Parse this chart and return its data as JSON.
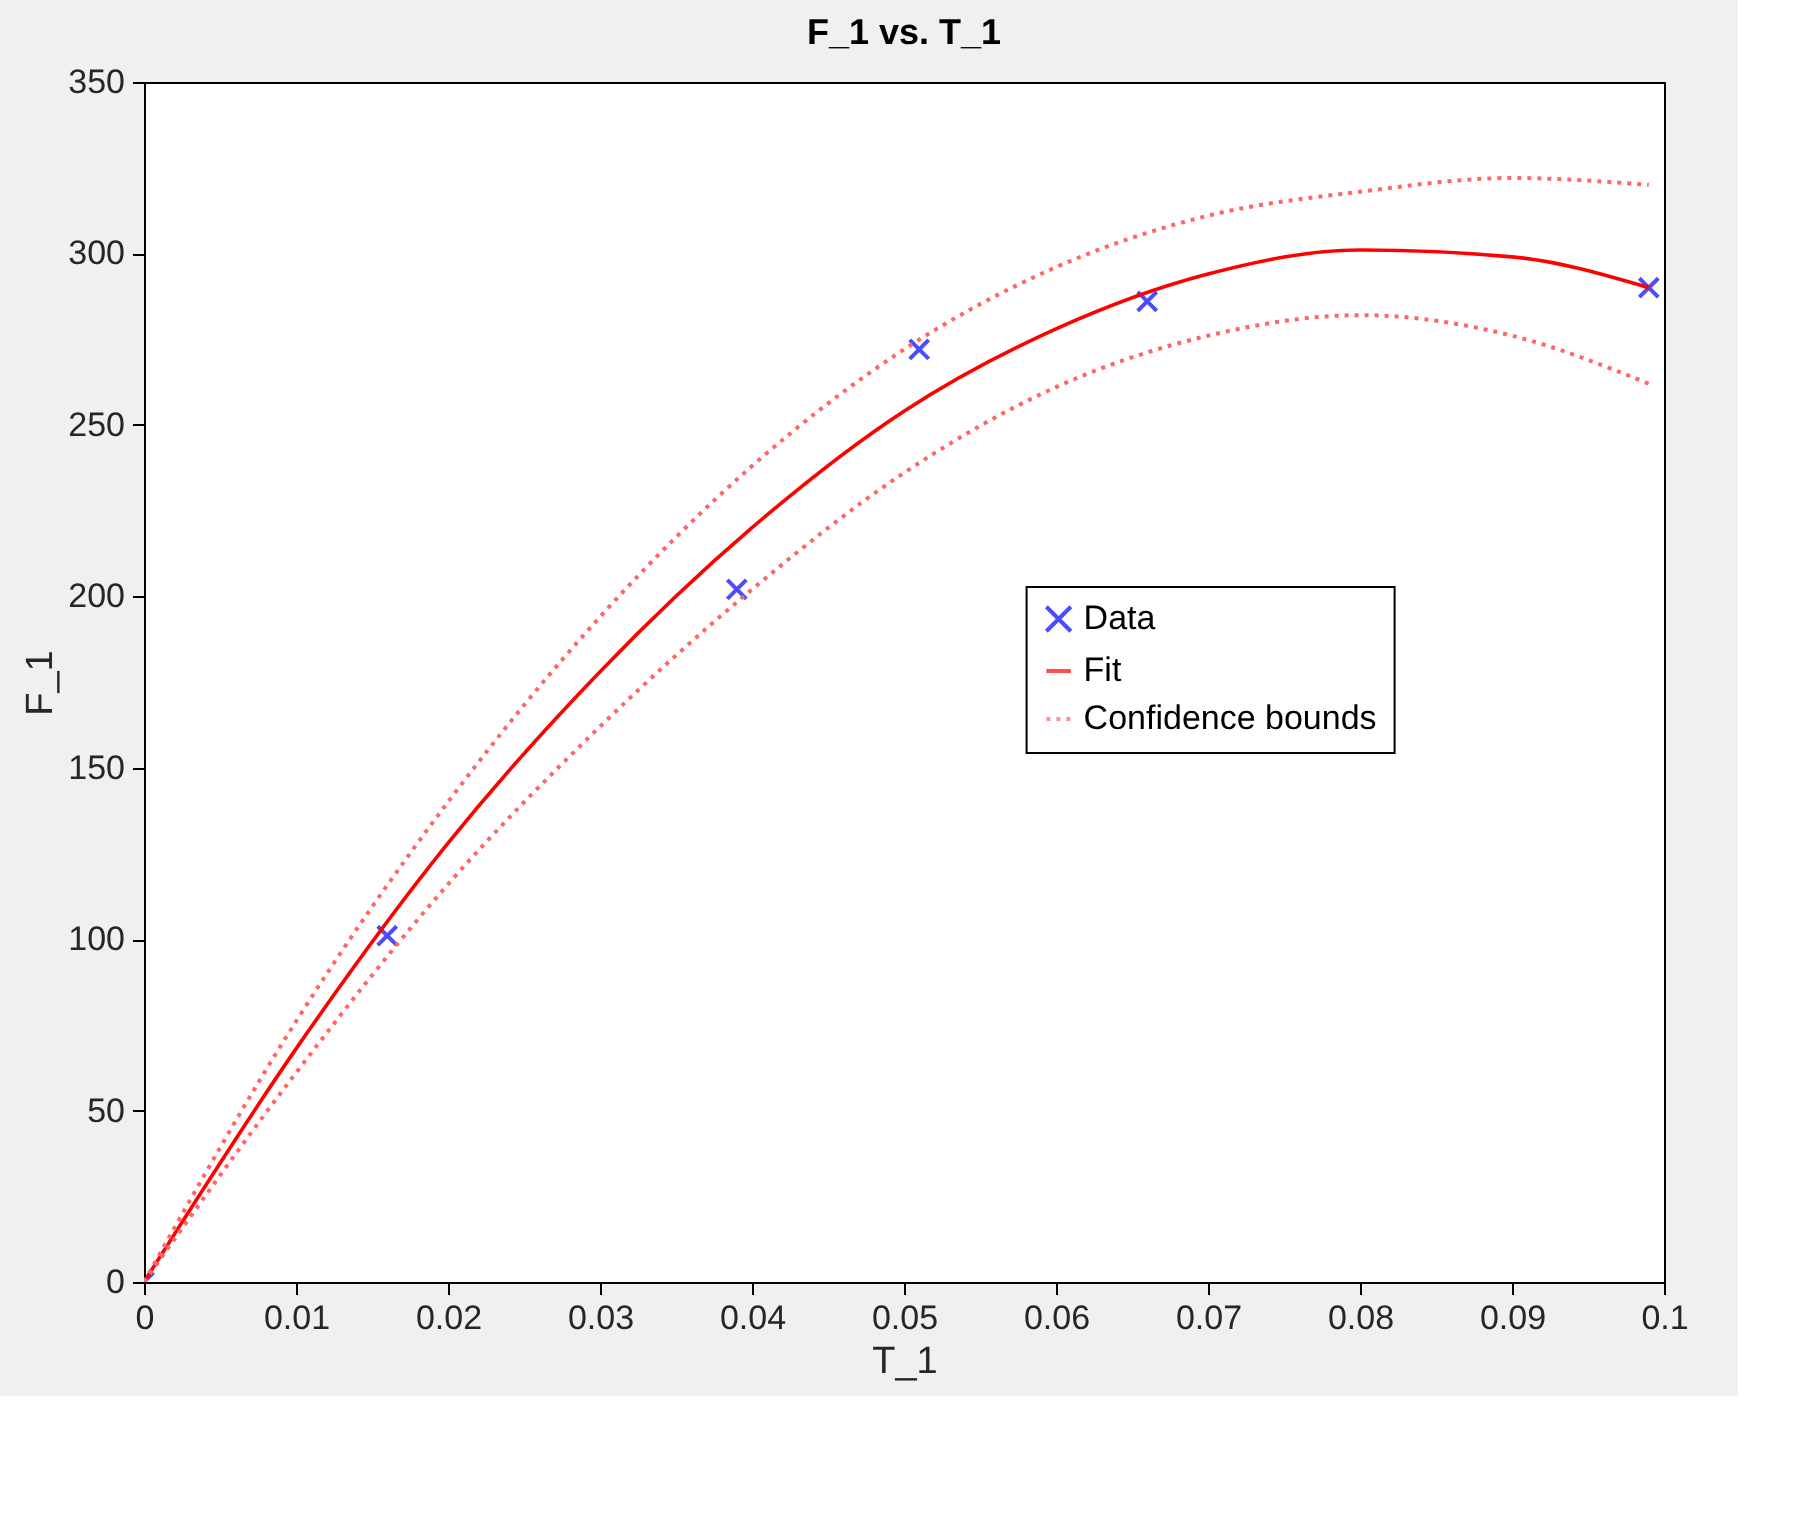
{
  "chart_data": {
    "type": "scatter",
    "title": "F_1 vs. T_1",
    "xlabel": "T_1",
    "ylabel": "F_1",
    "xlim": [
      0,
      0.1
    ],
    "xticks": [
      0,
      0.01,
      0.02,
      0.03,
      0.04,
      0.05,
      0.06,
      0.07,
      0.08,
      0.09,
      0.1
    ],
    "ylim": [
      0,
      350
    ],
    "yticks": [
      0,
      50,
      100,
      150,
      200,
      250,
      300,
      350
    ],
    "grid": false,
    "legend": "right",
    "series": [
      {
        "name": "Data",
        "color": "#0000ff",
        "marker": "cross",
        "x": [
          0,
          0.016,
          0.039,
          0.051,
          0.066,
          0.099
        ],
        "values": [
          0,
          101,
          202,
          272,
          286,
          290
        ]
      },
      {
        "name": "Fit",
        "type": "line",
        "color": "#ff0000",
        "line_style": "solid",
        "x": [
          0,
          0.01,
          0.02,
          0.03,
          0.04,
          0.05,
          0.06,
          0.07,
          0.08,
          0.09,
          0.099
        ],
        "values": [
          0,
          68,
          128,
          178,
          220,
          254,
          278,
          294,
          301,
          299,
          290
        ]
      },
      {
        "name": "Confidence bounds",
        "type": "line",
        "color": "#ff6666",
        "line_style": "dotted",
        "x": [
          0,
          0.01,
          0.02,
          0.03,
          0.04,
          0.05,
          0.06,
          0.07,
          0.08,
          0.09,
          0.099
        ],
        "values": [
          0,
          76,
          140,
          194,
          238,
          272,
          296,
          311,
          318,
          322,
          320
        ]
      },
      {
        "type": "line",
        "color": "#ff6666",
        "line_style": "dotted",
        "x": [
          0,
          0.01,
          0.02,
          0.03,
          0.04,
          0.05,
          0.06,
          0.07,
          0.08,
          0.09,
          0.099
        ],
        "values": [
          0,
          61,
          116,
          162,
          202,
          236,
          261,
          276,
          282,
          276,
          262
        ]
      }
    ]
  }
}
